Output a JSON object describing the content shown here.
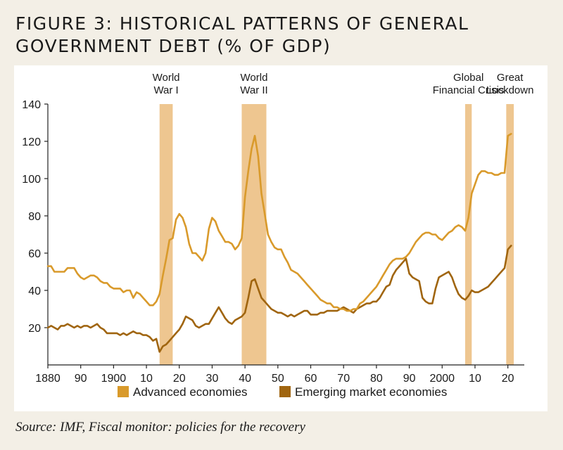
{
  "title_lines": [
    "FIGURE 3: HISTORICAL PATTERNS OF GENERAL",
    "GOVERNMENT DEBT (% OF GDP)"
  ],
  "source": "Source: IMF, Fiscal monitor: policies for the recovery",
  "colors": {
    "advanced": "#d99a2b",
    "emerging": "#a0650f",
    "shade": "#eec690",
    "axis": "#222222"
  },
  "chart_data": {
    "type": "line",
    "title": "Historical patterns of general government debt (% of GDP)",
    "xlabel": "",
    "ylabel": "",
    "xlim": [
      1880,
      2025
    ],
    "ylim": [
      0,
      140
    ],
    "y_ticks": [
      20,
      40,
      60,
      80,
      100,
      120,
      140
    ],
    "x_ticks": [
      {
        "value": 1880,
        "label": "1880"
      },
      {
        "value": 1890,
        "label": "90"
      },
      {
        "value": 1900,
        "label": "1900"
      },
      {
        "value": 1910,
        "label": "10"
      },
      {
        "value": 1920,
        "label": "20"
      },
      {
        "value": 1930,
        "label": "30"
      },
      {
        "value": 1940,
        "label": "40"
      },
      {
        "value": 1950,
        "label": "50"
      },
      {
        "value": 1960,
        "label": "60"
      },
      {
        "value": 1970,
        "label": "70"
      },
      {
        "value": 1980,
        "label": "80"
      },
      {
        "value": 1990,
        "label": "90"
      },
      {
        "value": 2000,
        "label": "2000"
      },
      {
        "value": 2010,
        "label": "10"
      },
      {
        "value": 2020,
        "label": "20"
      }
    ],
    "shaded_periods": [
      {
        "start": 1914,
        "end": 1918,
        "label": [
          "World",
          "War I"
        ]
      },
      {
        "start": 1939,
        "end": 1946.5,
        "label": [
          "World",
          "War II"
        ]
      },
      {
        "start": 2007,
        "end": 2009,
        "label": [
          "Global",
          "Financial Crisis"
        ]
      },
      {
        "start": 2019.5,
        "end": 2021.8,
        "label": [
          "Great",
          "Lockdown"
        ]
      }
    ],
    "legend": {
      "position": "bottom"
    },
    "series": [
      {
        "name": "Advanced economies",
        "color_key": "advanced",
        "x": [
          1880,
          1881,
          1882,
          1883,
          1884,
          1885,
          1886,
          1887,
          1888,
          1889,
          1890,
          1891,
          1892,
          1893,
          1894,
          1895,
          1896,
          1897,
          1898,
          1899,
          1900,
          1901,
          1902,
          1903,
          1904,
          1905,
          1906,
          1907,
          1908,
          1909,
          1910,
          1911,
          1912,
          1913,
          1914,
          1915,
          1916,
          1917,
          1918,
          1919,
          1920,
          1921,
          1922,
          1923,
          1924,
          1925,
          1926,
          1927,
          1928,
          1929,
          1930,
          1931,
          1932,
          1933,
          1934,
          1935,
          1936,
          1937,
          1938,
          1939,
          1940,
          1941,
          1942,
          1943,
          1944,
          1945,
          1946,
          1947,
          1948,
          1949,
          1950,
          1951,
          1952,
          1953,
          1954,
          1955,
          1956,
          1957,
          1958,
          1959,
          1960,
          1961,
          1962,
          1963,
          1964,
          1965,
          1966,
          1967,
          1968,
          1969,
          1970,
          1971,
          1972,
          1973,
          1974,
          1975,
          1976,
          1977,
          1978,
          1979,
          1980,
          1981,
          1982,
          1983,
          1984,
          1985,
          1986,
          1987,
          1988,
          1989,
          1990,
          1991,
          1992,
          1993,
          1994,
          1995,
          1996,
          1997,
          1998,
          1999,
          2000,
          2001,
          2002,
          2003,
          2004,
          2005,
          2006,
          2007,
          2008,
          2009,
          2010,
          2011,
          2012,
          2013,
          2014,
          2015,
          2016,
          2017,
          2018,
          2019,
          2020,
          2021
        ],
        "values": [
          53,
          53,
          50,
          50,
          50,
          50,
          52,
          52,
          52,
          49,
          47,
          46,
          47,
          48,
          48,
          47,
          45,
          44,
          44,
          42,
          41,
          41,
          41,
          39,
          40,
          40,
          36,
          39,
          38,
          36,
          34,
          32,
          32,
          34,
          38,
          48,
          57,
          67,
          68,
          78,
          81,
          79,
          74,
          65,
          60,
          60,
          58,
          56,
          60,
          73,
          79,
          77,
          72,
          69,
          66,
          66,
          65,
          62,
          64,
          68,
          90,
          104,
          116,
          123,
          112,
          92,
          81,
          70,
          66,
          63,
          62,
          62,
          58,
          55,
          51,
          50,
          49,
          47,
          45,
          43,
          41,
          39,
          37,
          35,
          34,
          33,
          33,
          31,
          31,
          30,
          30,
          29,
          29,
          30,
          30,
          33,
          34,
          36,
          38,
          40,
          42,
          45,
          48,
          51,
          54,
          56,
          57,
          57,
          57,
          58,
          60,
          63,
          66,
          68,
          70,
          71,
          71,
          70,
          70,
          68,
          67,
          69,
          71,
          72,
          74,
          75,
          74,
          72,
          79,
          92,
          97,
          102,
          104,
          104,
          103,
          103,
          102,
          102,
          103,
          103,
          123,
          124
        ]
      },
      {
        "name": "Emerging market economies",
        "color_key": "emerging",
        "x": [
          1880,
          1881,
          1882,
          1883,
          1884,
          1885,
          1886,
          1887,
          1888,
          1889,
          1890,
          1891,
          1892,
          1893,
          1894,
          1895,
          1896,
          1897,
          1898,
          1899,
          1900,
          1901,
          1902,
          1903,
          1904,
          1905,
          1906,
          1907,
          1908,
          1909,
          1910,
          1911,
          1912,
          1913,
          1914,
          1915,
          1916,
          1917,
          1918,
          1919,
          1920,
          1921,
          1922,
          1923,
          1924,
          1925,
          1926,
          1927,
          1928,
          1929,
          1930,
          1931,
          1932,
          1933,
          1934,
          1935,
          1936,
          1937,
          1938,
          1939,
          1940,
          1941,
          1942,
          1943,
          1944,
          1945,
          1946,
          1947,
          1948,
          1949,
          1950,
          1951,
          1952,
          1953,
          1954,
          1955,
          1956,
          1957,
          1958,
          1959,
          1960,
          1961,
          1962,
          1963,
          1964,
          1965,
          1966,
          1967,
          1968,
          1969,
          1970,
          1971,
          1972,
          1973,
          1974,
          1975,
          1976,
          1977,
          1978,
          1979,
          1980,
          1981,
          1982,
          1983,
          1984,
          1985,
          1986,
          1987,
          1988,
          1989,
          1990,
          1991,
          1992,
          1993,
          1994,
          1995,
          1996,
          1997,
          1998,
          1999,
          2000,
          2001,
          2002,
          2003,
          2004,
          2005,
          2006,
          2007,
          2008,
          2009,
          2010,
          2011,
          2012,
          2013,
          2014,
          2015,
          2016,
          2017,
          2018,
          2019,
          2020,
          2021
        ],
        "values": [
          20,
          21,
          20,
          19,
          21,
          21,
          22,
          21,
          20,
          21,
          20,
          21,
          21,
          20,
          21,
          22,
          20,
          19,
          17,
          17,
          17,
          17,
          16,
          17,
          16,
          17,
          18,
          17,
          17,
          16,
          16,
          15,
          13,
          14,
          7,
          10,
          11,
          13,
          15,
          17,
          19,
          22,
          26,
          25,
          24,
          21,
          20,
          21,
          22,
          22,
          25,
          28,
          31,
          28,
          25,
          23,
          22,
          24,
          25,
          26,
          28,
          36,
          45,
          46,
          41,
          36,
          34,
          32,
          30,
          29,
          28,
          28,
          27,
          26,
          27,
          26,
          27,
          28,
          29,
          29,
          27,
          27,
          27,
          28,
          28,
          29,
          29,
          29,
          29,
          30,
          31,
          30,
          29,
          28,
          30,
          31,
          32,
          33,
          33,
          34,
          34,
          36,
          39,
          42,
          43,
          48,
          51,
          53,
          55,
          57,
          49,
          47,
          46,
          45,
          36,
          34,
          33,
          33,
          41,
          47,
          48,
          49,
          50,
          47,
          42,
          38,
          36,
          35,
          37,
          40,
          39,
          39,
          40,
          41,
          42,
          44,
          46,
          48,
          50,
          52,
          62,
          64
        ]
      }
    ]
  }
}
